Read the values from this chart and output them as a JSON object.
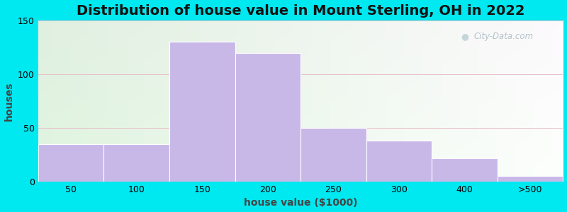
{
  "title": "Distribution of house value in Mount Sterling, OH in 2022",
  "xlabel": "house value ($1000)",
  "ylabel": "houses",
  "tick_labels": [
    "50",
    "100",
    "150",
    "200",
    "250",
    "300",
    "400",
    ">500"
  ],
  "bin_edges": [
    0,
    1,
    2,
    3,
    4,
    5,
    6,
    7,
    8
  ],
  "values": [
    35,
    35,
    130,
    120,
    50,
    38,
    22,
    5
  ],
  "bar_color": "#c8b8e8",
  "bar_edgecolor": "#ffffff",
  "ylim": [
    0,
    150
  ],
  "yticks": [
    0,
    50,
    100,
    150
  ],
  "background_outer": "#00e8f0",
  "title_fontsize": 14,
  "axis_label_fontsize": 10,
  "tick_fontsize": 9,
  "watermark_text": "City-Data.com",
  "grid_color": "#e0eecc",
  "bg_left_color": "#d8f0d0",
  "bg_right_color": "#f0f8f0"
}
